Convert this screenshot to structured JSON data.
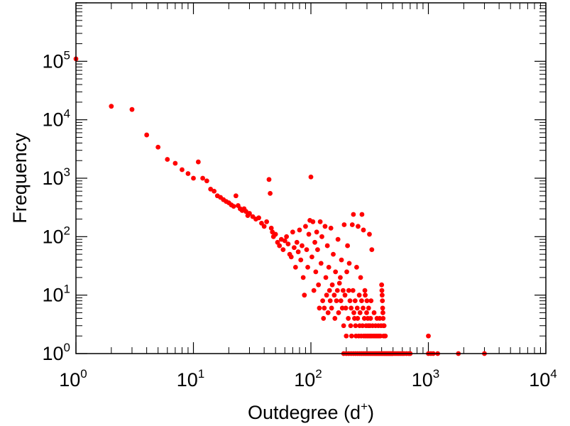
{
  "chart_data": {
    "type": "scatter",
    "title": "",
    "xlabel": "Outdegree (d",
    "xlabel_sup": "+",
    "xlabel_close": ")",
    "ylabel": "Frequency",
    "x_scale": "log",
    "y_scale": "log",
    "xlim": [
      1,
      10000
    ],
    "ylim": [
      1,
      1000000
    ],
    "grid": false,
    "legend": "none",
    "marker_color": "#ff0000",
    "axis_color": "#000000",
    "x_ticks": [
      {
        "base": "10",
        "exp": "0"
      },
      {
        "base": "10",
        "exp": "1"
      },
      {
        "base": "10",
        "exp": "2"
      },
      {
        "base": "10",
        "exp": "3"
      },
      {
        "base": "10",
        "exp": "4"
      }
    ],
    "y_ticks": [
      {
        "base": "10",
        "exp": "0"
      },
      {
        "base": "10",
        "exp": "1"
      },
      {
        "base": "10",
        "exp": "2"
      },
      {
        "base": "10",
        "exp": "3"
      },
      {
        "base": "10",
        "exp": "4"
      },
      {
        "base": "10",
        "exp": "5"
      }
    ],
    "series": [
      {
        "points": [
          [
            1,
            110000
          ],
          [
            2,
            17000
          ],
          [
            3,
            15000
          ],
          [
            4,
            5500
          ],
          [
            5,
            3400
          ],
          [
            6,
            2100
          ],
          [
            7,
            1800
          ],
          [
            8,
            1400
          ],
          [
            9,
            1200
          ],
          [
            10,
            1000
          ],
          [
            11,
            1900
          ],
          [
            12,
            1000
          ],
          [
            13,
            900
          ],
          [
            14,
            650
          ],
          [
            15,
            600
          ],
          [
            16,
            500
          ],
          [
            17,
            470
          ],
          [
            18,
            430
          ],
          [
            19,
            400
          ],
          [
            20,
            380
          ],
          [
            21,
            350
          ],
          [
            22,
            330
          ],
          [
            23,
            500
          ],
          [
            24,
            340
          ],
          [
            25,
            300
          ],
          [
            26,
            280
          ],
          [
            27,
            300
          ],
          [
            28,
            270
          ],
          [
            29,
            230
          ],
          [
            30,
            250
          ],
          [
            32,
            220
          ],
          [
            34,
            200
          ],
          [
            36,
            210
          ],
          [
            38,
            170
          ],
          [
            40,
            150
          ],
          [
            42,
            180
          ],
          [
            44,
            950
          ],
          [
            45,
            550
          ],
          [
            46,
            140
          ],
          [
            47,
            120
          ],
          [
            48,
            100
          ],
          [
            50,
            110
          ],
          [
            52,
            80
          ],
          [
            54,
            70
          ],
          [
            56,
            90
          ],
          [
            58,
            60
          ],
          [
            60,
            85
          ],
          [
            62,
            100
          ],
          [
            64,
            75
          ],
          [
            66,
            50
          ],
          [
            68,
            45
          ],
          [
            70,
            120
          ],
          [
            72,
            65
          ],
          [
            74,
            30
          ],
          [
            76,
            80
          ],
          [
            78,
            55
          ],
          [
            80,
            130
          ],
          [
            82,
            40
          ],
          [
            84,
            70
          ],
          [
            86,
            20
          ],
          [
            88,
            10
          ],
          [
            90,
            150
          ],
          [
            92,
            60
          ],
          [
            94,
            30
          ],
          [
            96,
            110
          ],
          [
            98,
            190
          ],
          [
            100,
            1050
          ],
          [
            102,
            45
          ],
          [
            104,
            180
          ],
          [
            106,
            12
          ],
          [
            108,
            80
          ],
          [
            110,
            25
          ],
          [
            112,
            120
          ],
          [
            114,
            60
          ],
          [
            116,
            15
          ],
          [
            118,
            6
          ],
          [
            120,
            180
          ],
          [
            122,
            35
          ],
          [
            124,
            100
          ],
          [
            126,
            8
          ],
          [
            128,
            4
          ],
          [
            130,
            6
          ],
          [
            132,
            150
          ],
          [
            134,
            20
          ],
          [
            136,
            10
          ],
          [
            138,
            70
          ],
          [
            140,
            5
          ],
          [
            142,
            30
          ],
          [
            144,
            12
          ],
          [
            146,
            8
          ],
          [
            148,
            140
          ],
          [
            150,
            6
          ],
          [
            152,
            15
          ],
          [
            155,
            50
          ],
          [
            158,
            10
          ],
          [
            160,
            4
          ],
          [
            162,
            25
          ],
          [
            165,
            8
          ],
          [
            168,
            12
          ],
          [
            170,
            90
          ],
          [
            172,
            5
          ],
          [
            175,
            16
          ],
          [
            178,
            20
          ],
          [
            180,
            8
          ],
          [
            182,
            40
          ],
          [
            185,
            6
          ],
          [
            188,
            12
          ],
          [
            190,
            3
          ],
          [
            192,
            160
          ],
          [
            195,
            10
          ],
          [
            198,
            6
          ],
          [
            200,
            2
          ],
          [
            202,
            25
          ],
          [
            205,
            70
          ],
          [
            208,
            4
          ],
          [
            210,
            12
          ],
          [
            212,
            35
          ],
          [
            215,
            8
          ],
          [
            218,
            3
          ],
          [
            220,
            6
          ],
          [
            222,
            2
          ],
          [
            225,
            160
          ],
          [
            228,
            12
          ],
          [
            230,
            240
          ],
          [
            232,
            5
          ],
          [
            235,
            4
          ],
          [
            238,
            8
          ],
          [
            240,
            3
          ],
          [
            242,
            2
          ],
          [
            245,
            30
          ],
          [
            248,
            6
          ],
          [
            250,
            4
          ],
          [
            252,
            150
          ],
          [
            255,
            2
          ],
          [
            258,
            10
          ],
          [
            260,
            3
          ],
          [
            262,
            5
          ],
          [
            265,
            20
          ],
          [
            268,
            2
          ],
          [
            270,
            8
          ],
          [
            272,
            240
          ],
          [
            275,
            3
          ],
          [
            278,
            6
          ],
          [
            280,
            130
          ],
          [
            282,
            2
          ],
          [
            285,
            4
          ],
          [
            288,
            12
          ],
          [
            290,
            10
          ],
          [
            292,
            2
          ],
          [
            295,
            3
          ],
          [
            298,
            5
          ],
          [
            300,
            8
          ],
          [
            302,
            2
          ],
          [
            305,
            4
          ],
          [
            308,
            3
          ],
          [
            310,
            6
          ],
          [
            312,
            2
          ],
          [
            315,
            110
          ],
          [
            318,
            3
          ],
          [
            320,
            2
          ],
          [
            322,
            4
          ],
          [
            325,
            8
          ],
          [
            328,
            2
          ],
          [
            330,
            60
          ],
          [
            335,
            3
          ],
          [
            340,
            2
          ],
          [
            345,
            5
          ],
          [
            350,
            2
          ],
          [
            355,
            3
          ],
          [
            360,
            2
          ],
          [
            365,
            4
          ],
          [
            370,
            2
          ],
          [
            375,
            3
          ],
          [
            380,
            2
          ],
          [
            385,
            4
          ],
          [
            390,
            2
          ],
          [
            395,
            3
          ],
          [
            400,
            15
          ],
          [
            402,
            12
          ],
          [
            404,
            10
          ],
          [
            406,
            8
          ],
          [
            408,
            6
          ],
          [
            410,
            5
          ],
          [
            412,
            4
          ],
          [
            414,
            3
          ],
          [
            416,
            2
          ],
          [
            420,
            3
          ],
          [
            425,
            2
          ],
          [
            430,
            2
          ],
          [
            190,
            1
          ],
          [
            200,
            1
          ],
          [
            210,
            1
          ],
          [
            220,
            1
          ],
          [
            230,
            1
          ],
          [
            240,
            1
          ],
          [
            250,
            1
          ],
          [
            260,
            1
          ],
          [
            270,
            1
          ],
          [
            280,
            1
          ],
          [
            290,
            1
          ],
          [
            300,
            1
          ],
          [
            310,
            1
          ],
          [
            320,
            1
          ],
          [
            330,
            1
          ],
          [
            340,
            1
          ],
          [
            350,
            1
          ],
          [
            360,
            1
          ],
          [
            370,
            1
          ],
          [
            380,
            1
          ],
          [
            390,
            1
          ],
          [
            400,
            1
          ],
          [
            410,
            1
          ],
          [
            420,
            1
          ],
          [
            430,
            1
          ],
          [
            440,
            1
          ],
          [
            450,
            1
          ],
          [
            460,
            1
          ],
          [
            470,
            1
          ],
          [
            480,
            1
          ],
          [
            490,
            1
          ],
          [
            500,
            1
          ],
          [
            520,
            1
          ],
          [
            540,
            1
          ],
          [
            560,
            1
          ],
          [
            580,
            1
          ],
          [
            600,
            1
          ],
          [
            620,
            1
          ],
          [
            650,
            1
          ],
          [
            680,
            1
          ],
          [
            700,
            1
          ],
          [
            1000,
            2
          ],
          [
            1000,
            1
          ],
          [
            1050,
            1
          ],
          [
            1100,
            1
          ],
          [
            1200,
            1
          ],
          [
            1800,
            1
          ],
          [
            3000,
            1
          ]
        ]
      }
    ]
  }
}
